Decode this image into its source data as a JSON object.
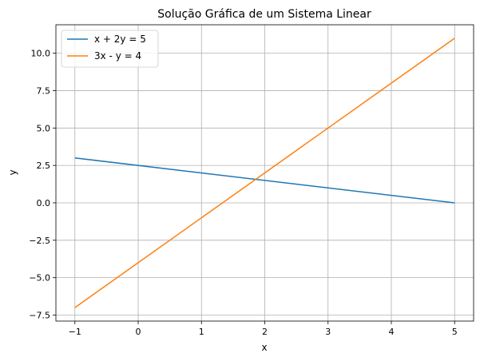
{
  "chart_data": {
    "type": "line",
    "title": "Solução Gráfica de um Sistema Linear",
    "xlabel": "x",
    "ylabel": "y",
    "xlim": [
      -1.3,
      5.3
    ],
    "ylim": [
      -7.9,
      11.9
    ],
    "xticks": [
      -1,
      0,
      1,
      2,
      3,
      4,
      5
    ],
    "xtick_labels": [
      "−1",
      "0",
      "1",
      "2",
      "3",
      "4",
      "5"
    ],
    "yticks": [
      -7.5,
      -5.0,
      -2.5,
      0.0,
      2.5,
      5.0,
      7.5,
      10.0
    ],
    "ytick_labels": [
      "−7.5",
      "−5.0",
      "−2.5",
      "0.0",
      "2.5",
      "5.0",
      "7.5",
      "10.0"
    ],
    "grid": true,
    "legend_position": "top-left",
    "series": [
      {
        "name": "x + 2y = 5",
        "color": "#1f77b4",
        "x": [
          -1,
          5
        ],
        "y": [
          3,
          0
        ]
      },
      {
        "name": "3x - y = 4",
        "color": "#ff7f0e",
        "x": [
          -1,
          5
        ],
        "y": [
          -7,
          11
        ]
      }
    ]
  }
}
